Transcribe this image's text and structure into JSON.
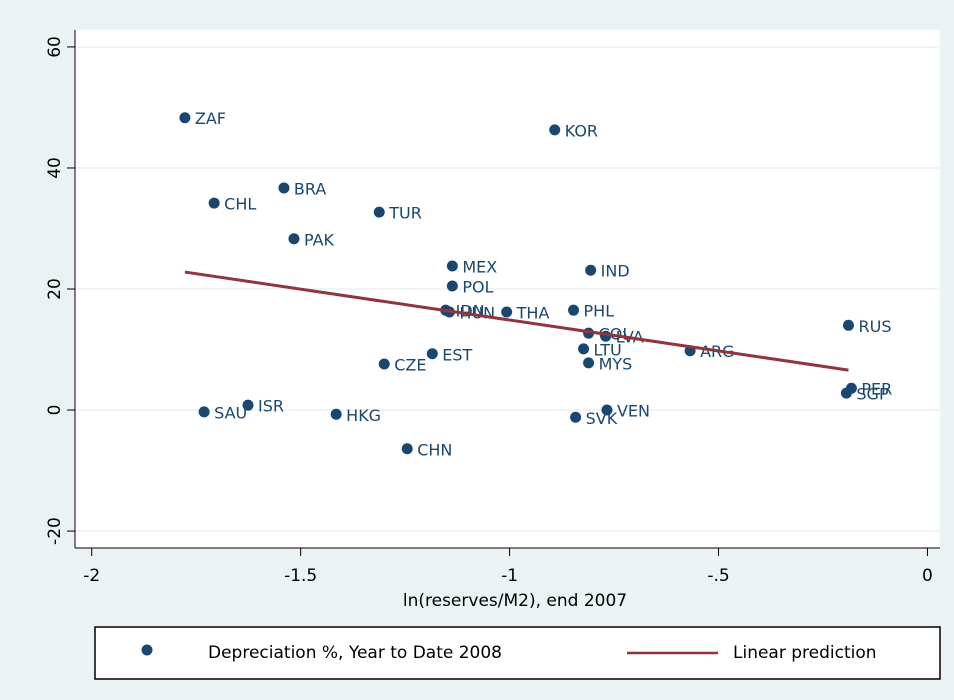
{
  "chart_data": {
    "type": "scatter",
    "x_label": "ln(reserves/M2), end 2007",
    "xlim": [
      -2.04,
      0.03
    ],
    "ylim": [
      -22.8,
      62.8
    ],
    "xticks": [
      -2,
      -1.5,
      -1,
      {
        "value": -0.5,
        "label": "-.5"
      },
      0
    ],
    "yticks": [
      -20,
      0,
      20,
      40,
      60
    ],
    "grid": true,
    "series": [
      {
        "name": "Depreciation %, Year to Date 2008",
        "color": "#1a476f",
        "kind": "scatter",
        "labels": [
          "ZAF",
          "KOR",
          "BRA",
          "CHL",
          "TUR",
          "PAK",
          "MEX",
          "IND",
          "POL",
          "IDN",
          "HUN",
          "THA",
          "PHL",
          "COL",
          "LVA",
          "LTU",
          "MYS",
          "ARG",
          "RUS",
          "PER",
          "SGP",
          "EST",
          "CZE",
          "SAU",
          "ISR",
          "HKG",
          "SVK",
          "VEN",
          "CHN"
        ],
        "x": [
          -1.777,
          -0.892,
          -1.54,
          -1.707,
          -1.312,
          -1.516,
          -1.137,
          -0.806,
          -1.137,
          -1.153,
          -1.144,
          -1.007,
          -0.847,
          -0.811,
          -0.77,
          -0.823,
          -0.811,
          -0.568,
          -0.189,
          -0.182,
          -0.194,
          -1.185,
          -1.3,
          -1.731,
          -1.626,
          -1.415,
          -0.842,
          -0.767,
          -1.245
        ],
        "values": [
          48.3,
          46.3,
          36.7,
          34.2,
          32.7,
          28.3,
          23.8,
          23.1,
          20.5,
          16.5,
          16.2,
          16.2,
          16.5,
          12.7,
          12.2,
          10.1,
          7.8,
          9.8,
          14.0,
          3.6,
          2.8,
          9.3,
          7.6,
          -0.3,
          0.8,
          -0.7,
          -1.2,
          0,
          -6.4
        ]
      },
      {
        "name": "Linear prediction",
        "color": "#90353b",
        "kind": "line",
        "x": [
          -1.777,
          -0.189
        ],
        "values": [
          22.8,
          6.6
        ]
      }
    ],
    "legend": "bottom"
  }
}
